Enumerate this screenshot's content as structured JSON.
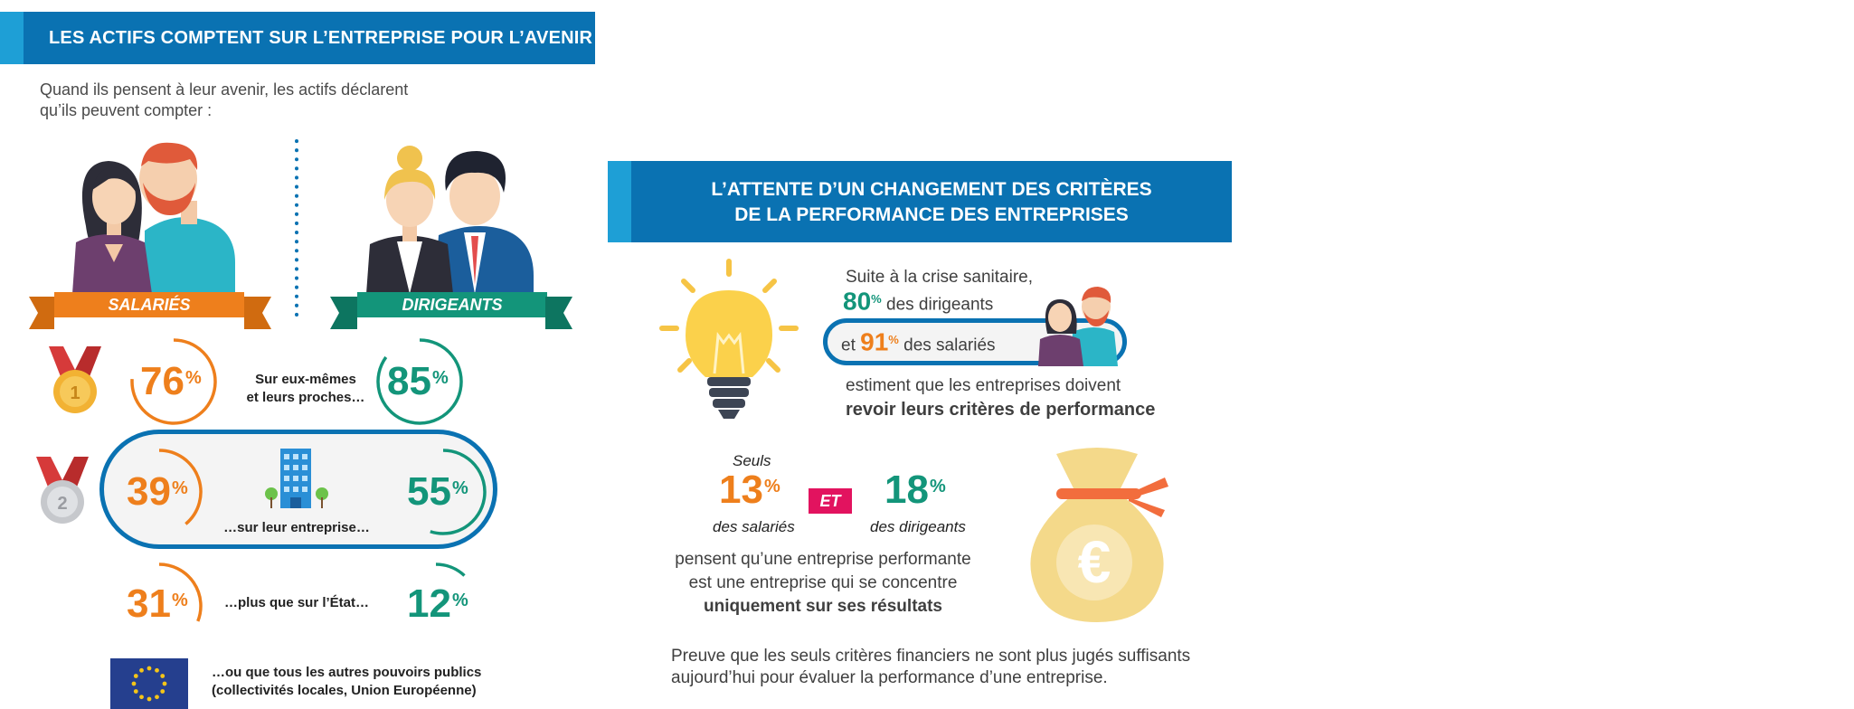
{
  "left": {
    "banner_title": "LES ACTIFS COMPTENT SUR L’ENTREPRISE POUR L’AVENIR",
    "intro_line1": "Quand ils pensent à leur avenir, les actifs déclarent",
    "intro_line2": "qu’ils peuvent compter :",
    "salaries_label": "SALARIÉS",
    "dirigeants_label": "DIRIGEANTS",
    "rows": [
      {
        "salaries": "76",
        "dirigeants": "85",
        "label_line1": "Sur eux-mêmes",
        "label_line2": "et leurs proches…",
        "medal": "1"
      },
      {
        "salaries": "39",
        "dirigeants": "55",
        "label_line1": "…sur leur entreprise…",
        "medal": "2"
      },
      {
        "salaries": "31",
        "dirigeants": "12",
        "label_line1": "…plus que sur l’État…"
      }
    ],
    "public_line1": "…ou que tous les autres pouvoirs publics",
    "public_line2": "(collectivités locales, Union Européenne)",
    "percent_sign": "%",
    "gauge_fractions": {
      "76": 0.76,
      "85": 0.85,
      "39": 0.39,
      "55": 0.55,
      "31": 0.31,
      "12": 0.12
    }
  },
  "right": {
    "banner_line1": "L’ATTENTE D’UN CHANGEMENT DES CRITÈRES",
    "banner_line2": "DE LA PERFORMANCE DES ENTREPRISES",
    "crisis_line": "Suite à la crise sanitaire,",
    "dirigeants_pct": "80",
    "dirigeants_text": "des dirigeants",
    "et_label": "et",
    "salaries_pct": "91",
    "salaries_text": "des salariés",
    "estiment": "estiment que les entreprises doivent",
    "revoir": "revoir leurs critères de performance",
    "seuls": "Seuls",
    "sal_13": "13",
    "des_salaries": "des salariés",
    "et_badge": "ET",
    "dir_18": "18",
    "des_dirigeants": "des dirigeants",
    "pensent1": "pensent qu’une entreprise performante",
    "pensent2": "est une entreprise qui se concentre",
    "pensent3": "uniquement sur ses résultats",
    "preuve1": "Preuve que les seuls critères financiers ne sont plus jugés suffisants",
    "preuve2": "aujourd’hui pour évaluer la performance d’une entreprise.",
    "euro": "€"
  },
  "colors": {
    "orange": "#ee7f1c",
    "green": "#13957a",
    "blue": "#0a72b2",
    "light_blue": "#1e9fd6",
    "pink": "#e2135f"
  }
}
